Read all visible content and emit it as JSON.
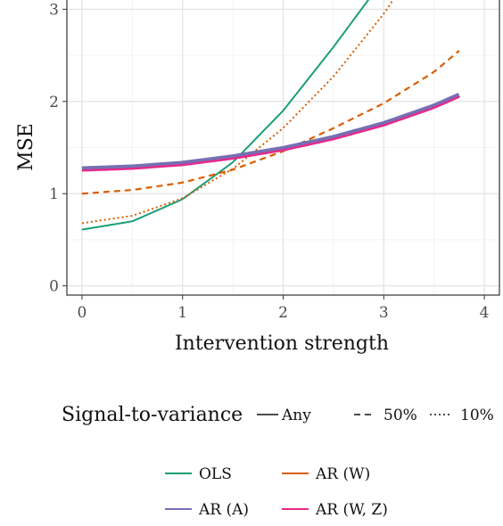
{
  "chart_data": {
    "type": "line",
    "xlabel": "Intervention strength",
    "ylabel": "MSE",
    "xlim": [
      -0.15,
      4.15
    ],
    "ylim": [
      -0.1,
      3.1
    ],
    "xticks": [
      "0",
      "1",
      "2",
      "3",
      "4"
    ],
    "yticks": [
      "0",
      "1",
      "2",
      "3"
    ],
    "grid": true,
    "x_range": [
      0,
      3.75
    ],
    "series": [
      {
        "name": "OLS",
        "linetype": "Any",
        "color": "#1b9e77",
        "x": [
          0,
          0.5,
          1,
          1.5,
          2,
          2.5,
          2.9
        ],
        "y": [
          0.61,
          0.7,
          0.94,
          1.34,
          1.9,
          2.59,
          3.18
        ]
      },
      {
        "name": "OLS",
        "linetype": "10%",
        "color": "#d95f02",
        "x": [
          0,
          0.5,
          1,
          1.5,
          2,
          2.5,
          3,
          3.3
        ],
        "y": [
          0.68,
          0.76,
          0.95,
          1.27,
          1.71,
          2.27,
          2.95,
          3.44
        ]
      },
      {
        "name": "AR (W)",
        "linetype": "50%",
        "color": "#d95f02",
        "x": [
          0,
          0.5,
          1,
          1.5,
          2,
          2.5,
          3,
          3.5,
          3.75
        ],
        "y": [
          1.0,
          1.04,
          1.12,
          1.26,
          1.46,
          1.71,
          1.98,
          2.32,
          2.55
        ]
      },
      {
        "name": "AR (A)",
        "linetype": "Any",
        "color": "#7570b3",
        "x": [
          0,
          0.5,
          1,
          1.5,
          2,
          2.5,
          3,
          3.5,
          3.75
        ],
        "y": [
          1.27,
          1.29,
          1.33,
          1.4,
          1.49,
          1.61,
          1.76,
          1.95,
          2.07
        ]
      },
      {
        "name": "AR (W, Z)",
        "linetype": "Any",
        "color": "#e7298a",
        "x": [
          0,
          0.5,
          1,
          1.5,
          2,
          2.5,
          3,
          3.5,
          3.75
        ],
        "y": [
          1.25,
          1.27,
          1.31,
          1.38,
          1.47,
          1.59,
          1.74,
          1.93,
          2.05
        ]
      }
    ],
    "legend_linetype": {
      "title": "Signal-to-variance",
      "items": [
        "Any",
        "50%",
        "10%"
      ]
    },
    "legend_color": {
      "items": [
        "OLS",
        "AR (W)",
        "AR (A)",
        "AR (W, Z)"
      ]
    }
  }
}
